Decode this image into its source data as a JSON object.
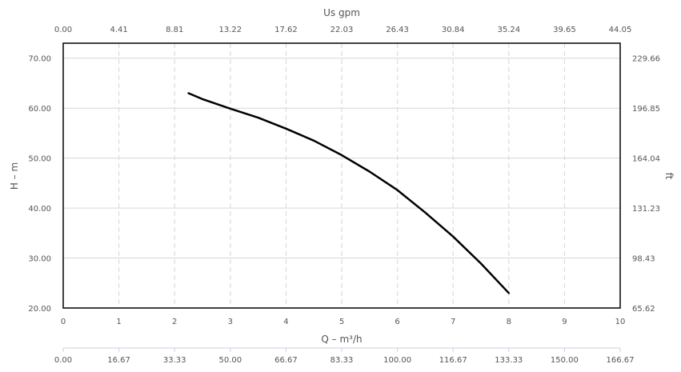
{
  "chart_data": {
    "type": "line",
    "top_axis_title": "Us gpm",
    "bottom_axis_title": "Q – m³/h",
    "left_axis_title": "H – m",
    "right_axis_title": "ft",
    "xlim": [
      0,
      10
    ],
    "ylim": [
      20,
      73
    ],
    "grid": true,
    "x_ticks": [
      "0",
      "1",
      "2",
      "3",
      "4",
      "5",
      "6",
      "7",
      "8",
      "9",
      "10"
    ],
    "top_ticks": [
      "0.00",
      "4.41",
      "8.81",
      "13.22",
      "17.62",
      "22.03",
      "26.43",
      "30.84",
      "35.24",
      "39.65",
      "44.05"
    ],
    "extra_ticks": [
      "0.00",
      "16.67",
      "33.33",
      "50.00",
      "66.67",
      "83.33",
      "100.00",
      "116.67",
      "133.33",
      "150.00",
      "166.67"
    ],
    "y_ticks": [
      {
        "value": 20,
        "label": "20.00"
      },
      {
        "value": 30,
        "label": "30.00"
      },
      {
        "value": 40,
        "label": "40.00"
      },
      {
        "value": 50,
        "label": "50.00"
      },
      {
        "value": 60,
        "label": "60.00"
      },
      {
        "value": 70,
        "label": "70.00"
      }
    ],
    "right_ticks": [
      "65.62",
      "98.43",
      "131.23",
      "164.04",
      "196.85",
      "229.66"
    ],
    "series": [
      {
        "color": "#000000",
        "x": [
          2.25,
          2.5,
          3.0,
          3.5,
          4.0,
          4.5,
          5.0,
          5.5,
          6.0,
          6.5,
          7.0,
          7.5,
          8.0
        ],
        "y": [
          63.0,
          61.8,
          59.9,
          58.1,
          55.9,
          53.5,
          50.6,
          47.3,
          43.6,
          39.1,
          34.3,
          28.9,
          23.0
        ]
      }
    ]
  }
}
